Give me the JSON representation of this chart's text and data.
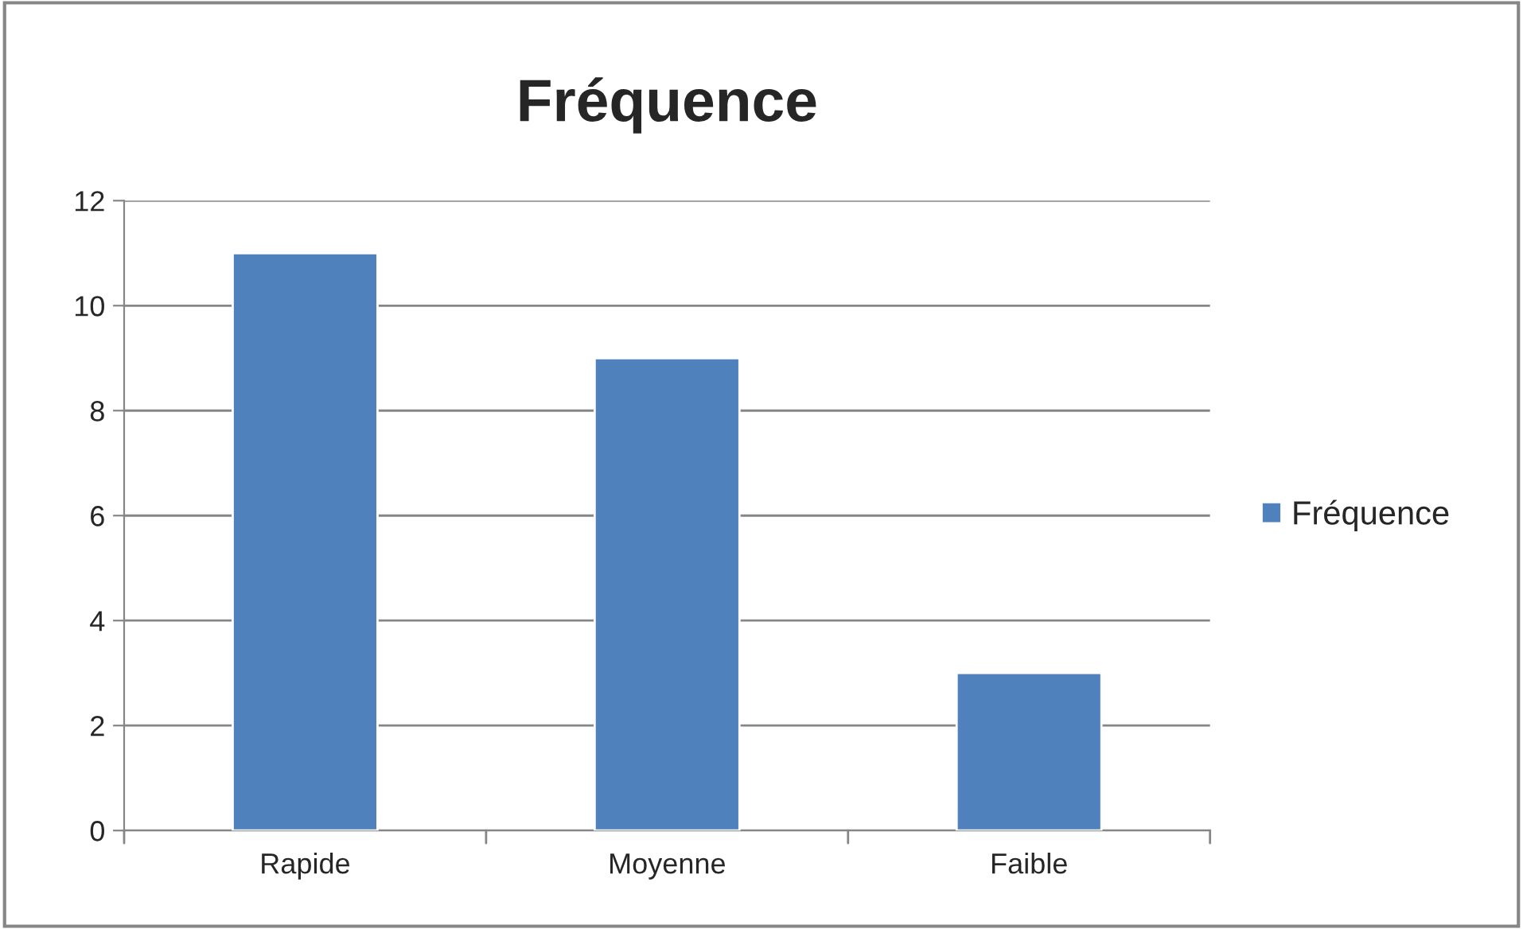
{
  "chart_data": {
    "type": "bar",
    "title": "Fréquence",
    "categories": [
      "Rapide",
      "Moyenne",
      "Faible"
    ],
    "series": [
      {
        "name": "Fréquence",
        "color": "#4f81bd",
        "values": [
          11,
          9,
          3
        ]
      }
    ],
    "ylim": [
      0,
      12
    ],
    "yticks": [
      0,
      2,
      4,
      6,
      8,
      10,
      12
    ],
    "grid": "y",
    "legend": "right"
  }
}
